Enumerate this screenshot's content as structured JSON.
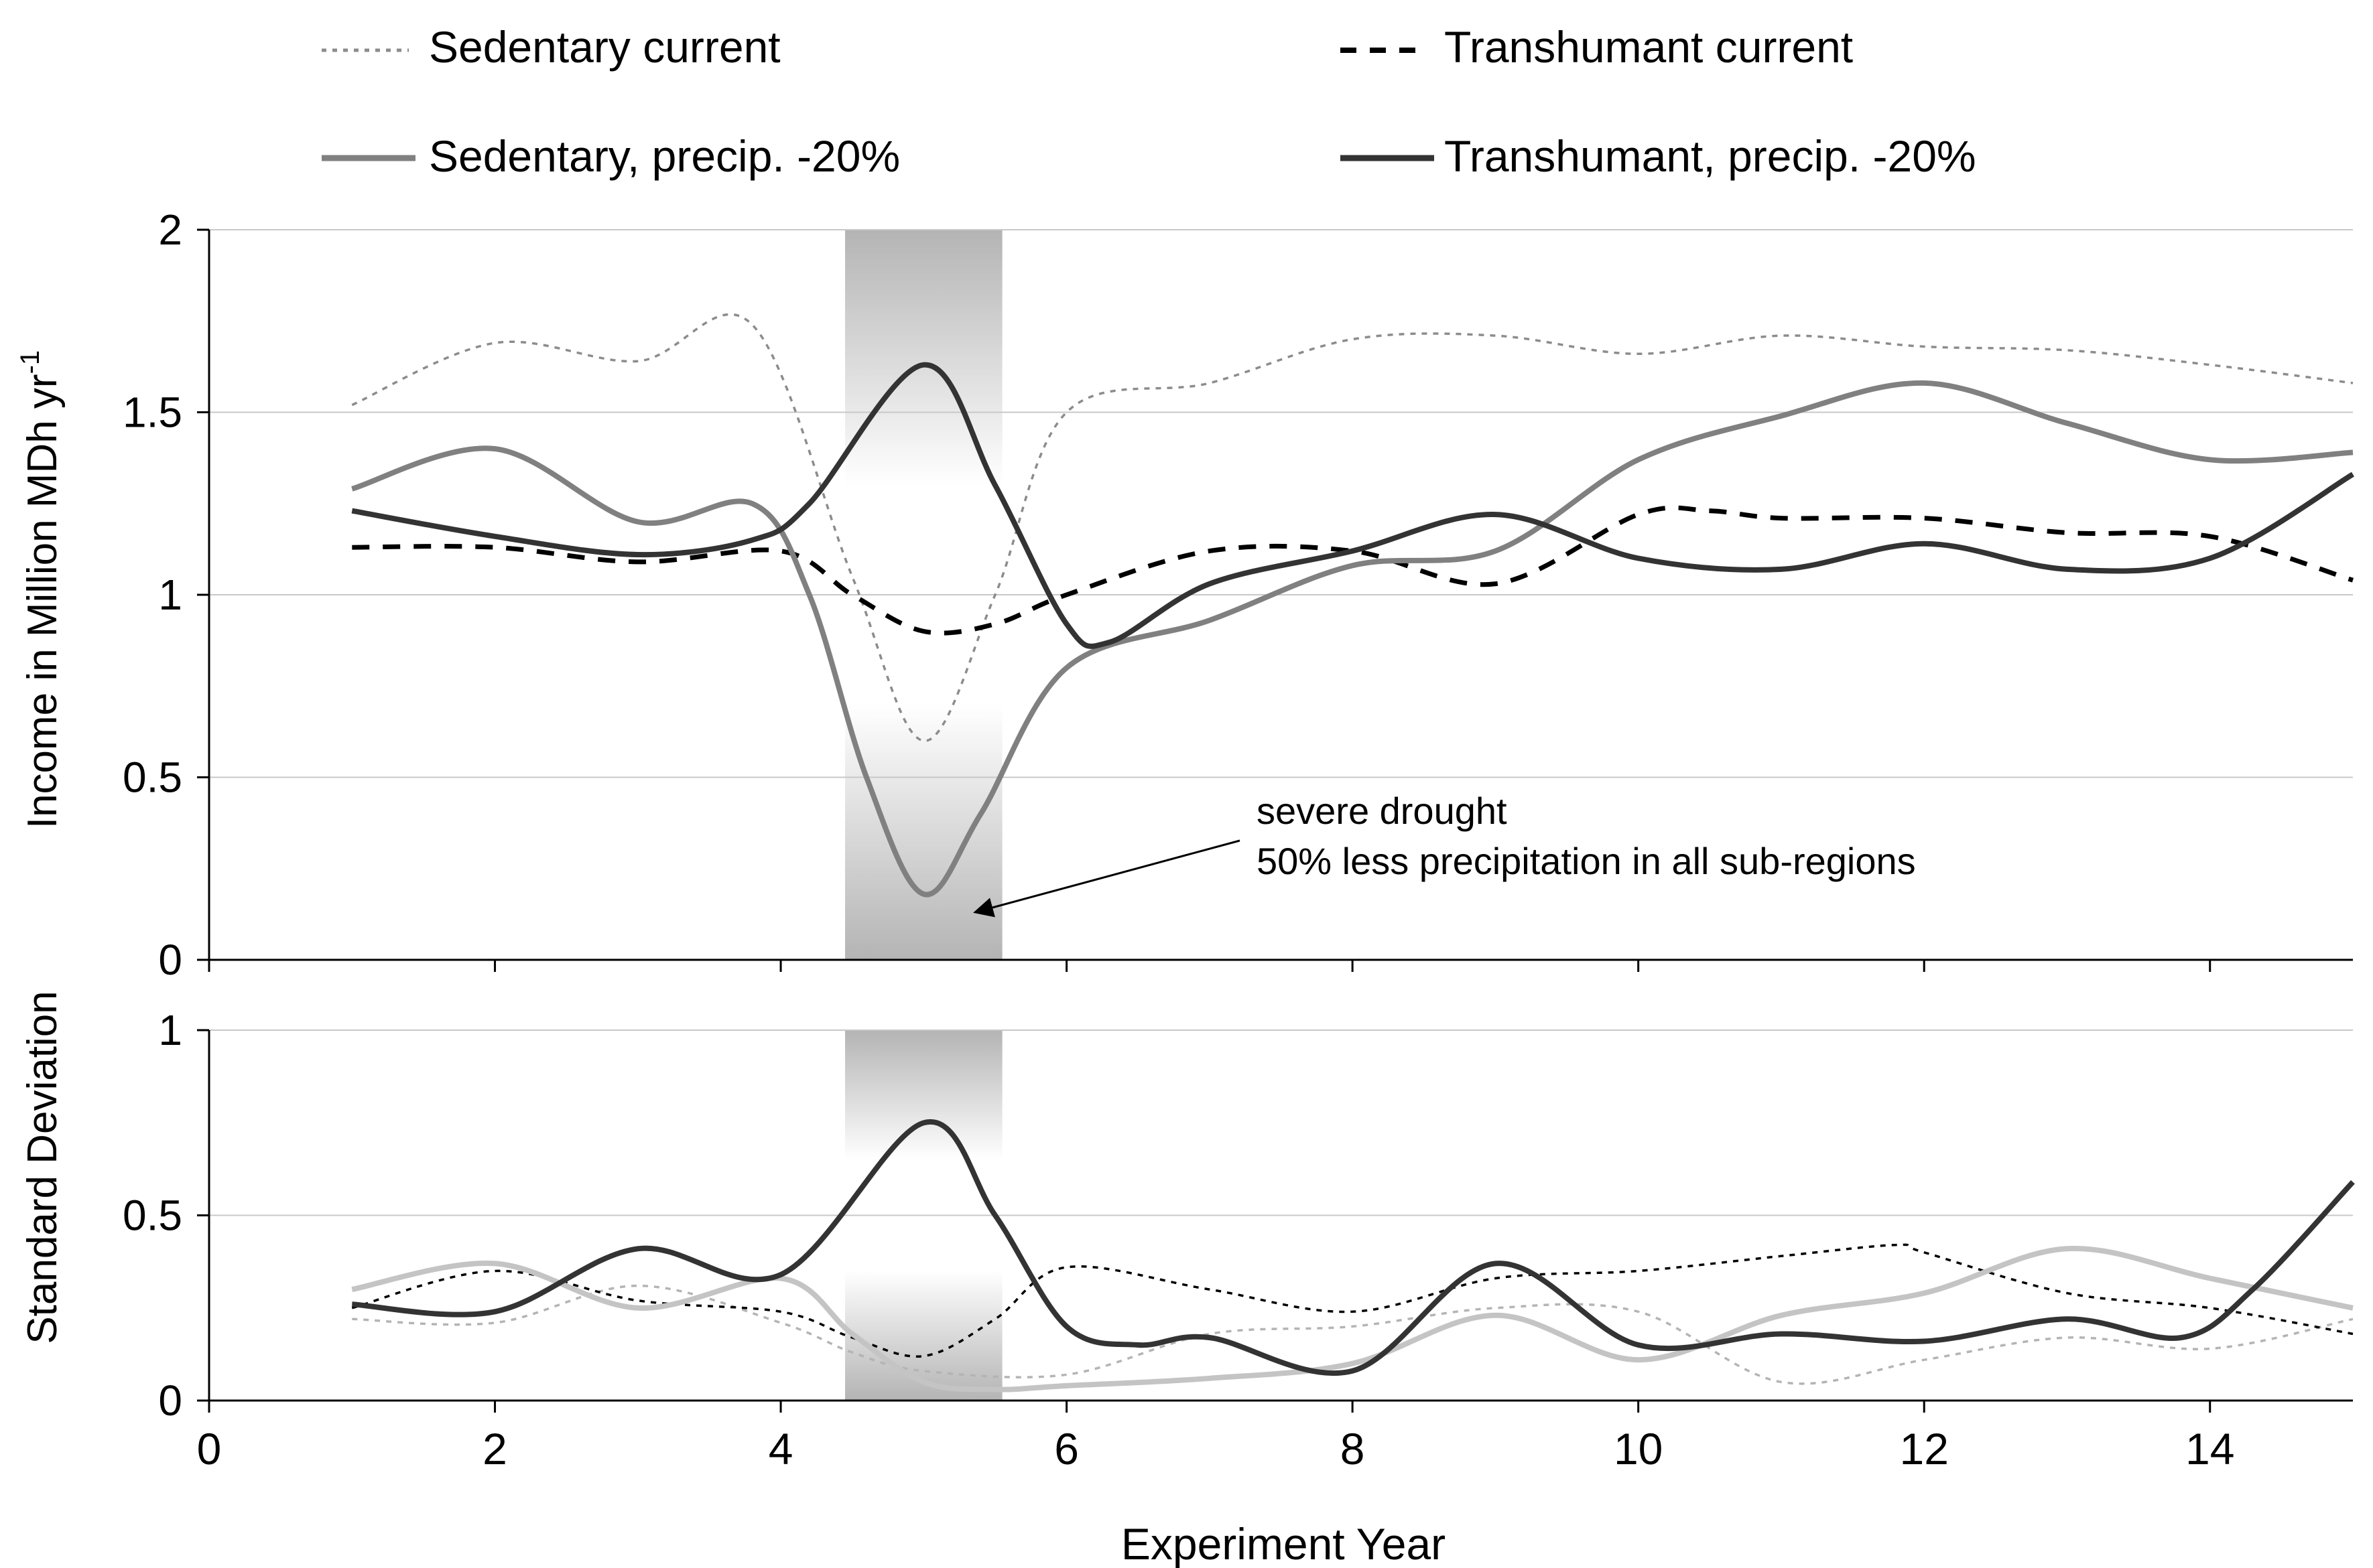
{
  "legend": {
    "placement": "top",
    "items": [
      {
        "label": "Sedentary current",
        "color": "#8c8c8c",
        "style": "dotted"
      },
      {
        "label": "Transhumant current",
        "color": "#000000",
        "style": "dashed"
      },
      {
        "label": "Sedentary, precip. -20%",
        "color": "#808080",
        "style": "solid"
      },
      {
        "label": "Transhumant, precip. -20%",
        "color": "#333333",
        "style": "solid"
      }
    ]
  },
  "chart_data": [
    {
      "type": "line",
      "title": "",
      "xlabel": "",
      "ylabel": "Income in Million MDh yr",
      "ylabel_superscript": "-1",
      "xlim": [
        0,
        15
      ],
      "ylim": [
        0,
        2
      ],
      "x_ticks": [
        0,
        2,
        4,
        6,
        8,
        10,
        12,
        14
      ],
      "y_tick_labels": [
        "0",
        "0.5",
        "1",
        "1.5",
        "2"
      ],
      "y_ticks": [
        0,
        0.5,
        1,
        1.5,
        2
      ],
      "grid": true,
      "highlight_band": {
        "x_start": 4.45,
        "x_end": 5.55,
        "label": "severe drought"
      },
      "annotation": {
        "lines": [
          "severe drought",
          "50% less precipitation in all sub-regions"
        ],
        "arrow_target": {
          "x": 5.4,
          "y": 0.12
        }
      },
      "series": [
        {
          "name": "Sedentary current",
          "color": "#8c8c8c",
          "style": "dotted",
          "x": [
            1,
            2,
            3,
            3.8,
            4.5,
            5,
            5.5,
            6,
            7,
            8,
            9,
            10,
            11,
            12,
            13,
            14,
            15
          ],
          "y": [
            1.52,
            1.69,
            1.64,
            1.74,
            1.05,
            0.6,
            1.0,
            1.5,
            1.58,
            1.7,
            1.71,
            1.66,
            1.71,
            1.68,
            1.67,
            1.63,
            1.58
          ]
        },
        {
          "name": "Transhumant current",
          "color": "#000000",
          "style": "dashed",
          "x": [
            1,
            2,
            3,
            4,
            4.5,
            5,
            5.5,
            6,
            7,
            8,
            9,
            10,
            10.5,
            11,
            12,
            13,
            14,
            15
          ],
          "y": [
            1.13,
            1.13,
            1.09,
            1.12,
            1.0,
            0.9,
            0.92,
            1.0,
            1.12,
            1.12,
            1.03,
            1.22,
            1.23,
            1.21,
            1.21,
            1.17,
            1.16,
            1.04
          ]
        },
        {
          "name": "Sedentary, precip. -20%",
          "color": "#808080",
          "style": "solid",
          "x": [
            1,
            2,
            3,
            3.8,
            4.2,
            4.6,
            5,
            5.4,
            6,
            7,
            8,
            9,
            10,
            11,
            12,
            13,
            14,
            15
          ],
          "y": [
            1.29,
            1.4,
            1.2,
            1.25,
            1.0,
            0.5,
            0.18,
            0.4,
            0.8,
            0.93,
            1.08,
            1.12,
            1.37,
            1.49,
            1.58,
            1.47,
            1.37,
            1.39
          ]
        },
        {
          "name": "Transhumant, precip. -20%",
          "color": "#333333",
          "style": "solid",
          "x": [
            1,
            2,
            3,
            3.8,
            4.2,
            5,
            5.5,
            6,
            6.3,
            7,
            8,
            9,
            10,
            11,
            12,
            13,
            14,
            15
          ],
          "y": [
            1.23,
            1.16,
            1.11,
            1.15,
            1.25,
            1.63,
            1.3,
            0.92,
            0.87,
            1.03,
            1.12,
            1.22,
            1.1,
            1.07,
            1.14,
            1.07,
            1.1,
            1.33
          ]
        }
      ]
    },
    {
      "type": "line",
      "title": "",
      "xlabel": "Experiment Year",
      "ylabel": "Standard Deviation",
      "xlim": [
        0,
        15
      ],
      "ylim": [
        0,
        1
      ],
      "x_ticks": [
        0,
        2,
        4,
        6,
        8,
        10,
        12,
        14
      ],
      "x_tick_labels": [
        "0",
        "2",
        "4",
        "6",
        "8",
        "10",
        "12",
        "14"
      ],
      "y_ticks": [
        0,
        0.5,
        1
      ],
      "y_tick_labels": [
        "0",
        "0.5",
        "1"
      ],
      "grid": true,
      "highlight_band": {
        "x_start": 4.45,
        "x_end": 5.55
      },
      "series": [
        {
          "name": "Sedentary current",
          "color": "#b4b4b4",
          "style": "dotted",
          "x": [
            1,
            2,
            3,
            4,
            4.5,
            5,
            6,
            7,
            8,
            9,
            10,
            11,
            12,
            13,
            14,
            15
          ],
          "y": [
            0.22,
            0.21,
            0.31,
            0.21,
            0.13,
            0.08,
            0.07,
            0.18,
            0.2,
            0.25,
            0.24,
            0.05,
            0.11,
            0.17,
            0.14,
            0.22
          ]
        },
        {
          "name": "Transhumant current",
          "color": "#000000",
          "style": "dotted",
          "x": [
            1,
            2,
            3,
            4,
            4.5,
            5,
            5.5,
            6,
            7,
            8,
            9,
            10,
            11,
            11.8,
            12,
            13,
            14,
            15
          ],
          "y": [
            0.25,
            0.35,
            0.27,
            0.24,
            0.17,
            0.12,
            0.22,
            0.36,
            0.3,
            0.24,
            0.33,
            0.35,
            0.39,
            0.42,
            0.4,
            0.29,
            0.25,
            0.18
          ]
        },
        {
          "name": "Sedentary, precip. -20%",
          "color": "#c4c4c4",
          "style": "solid",
          "x": [
            1,
            2,
            3,
            4,
            4.5,
            5,
            5.5,
            6,
            7,
            8,
            9,
            10,
            11,
            12,
            13,
            14,
            15
          ],
          "y": [
            0.3,
            0.37,
            0.25,
            0.33,
            0.18,
            0.05,
            0.03,
            0.04,
            0.06,
            0.1,
            0.23,
            0.11,
            0.23,
            0.29,
            0.41,
            0.33,
            0.25
          ]
        },
        {
          "name": "Transhumant, precip. -20%",
          "color": "#333333",
          "style": "solid",
          "x": [
            1,
            2,
            3,
            4,
            5,
            5.5,
            6,
            6.5,
            7,
            8,
            9,
            10,
            11,
            12,
            13,
            13.8,
            14.3,
            15
          ],
          "y": [
            0.26,
            0.24,
            0.41,
            0.34,
            0.75,
            0.5,
            0.2,
            0.15,
            0.17,
            0.08,
            0.37,
            0.15,
            0.18,
            0.16,
            0.22,
            0.17,
            0.3,
            0.59
          ]
        }
      ]
    }
  ]
}
